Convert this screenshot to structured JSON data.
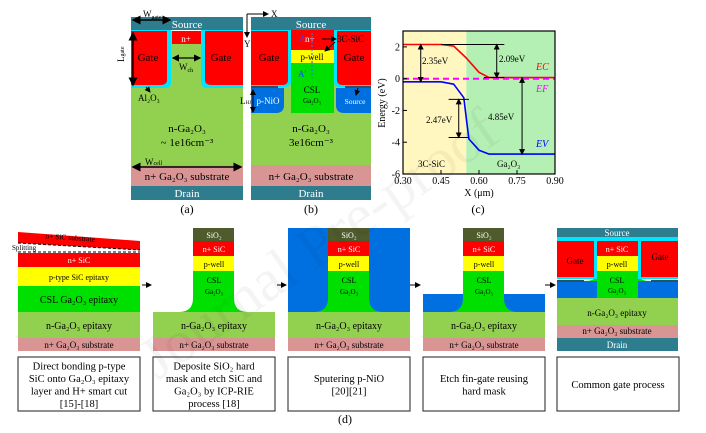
{
  "colors": {
    "teal": "#2e7d8f",
    "cyan": "#00e5ff",
    "gate": "#ff0000",
    "n_ga2o3": "#92d050",
    "substrate": "#d99594",
    "csl": "#00e000",
    "pwell": "#ffff00",
    "nio": "#0070e0",
    "sio2": "#4f5b2c",
    "sic_bg": "#fff6c0",
    "ga2o3_bg": "#b4f0b4",
    "ec": "#ff0000",
    "ev": "#0000ff",
    "ef": "#ff00ff"
  },
  "watermark": "Journal Pre-proof",
  "a": {
    "source": "Source",
    "gate_l": "Gate",
    "gate_r": "Gate",
    "nplus": "n+",
    "w_gate": "W",
    "w_gate_sub": "gate",
    "l_gate": "L",
    "l_gate_sub": "gate",
    "w_ch": "W",
    "w_ch_sub": "ch",
    "al2o3": "Al₂O₃",
    "drift": "n-Ga₂O₃",
    "doping": "~ 1e16cm⁻³",
    "w_cell": "W",
    "w_cell_sub": "cell",
    "substrate": "n+  Ga₂O₃ substrate",
    "drain": "Drain",
    "label": "(a)"
  },
  "b": {
    "axis_x": "X",
    "axis_y": "Y",
    "source": "Source",
    "gate_l": "Gate",
    "gate_r": "Gate",
    "nplus": "n+",
    "a_pt": "A",
    "a2_pt": "A'",
    "sic": "3C-SiC",
    "pwell": "p-well",
    "csl": "CSL",
    "csl2": "Ga₂O₃",
    "nio": "p-NiO",
    "src2": "Source",
    "l_hj": "L",
    "l_hj_sub": "HJ",
    "drift": "n-Ga₂O₃",
    "doping": "3e16cm⁻³",
    "substrate": "n+ Ga₂O₃ substrate",
    "drain": "Drain",
    "label": "(b)"
  },
  "chart_data": {
    "type": "line",
    "xlabel": "X (μm)",
    "ylabel": "Energy (eV)",
    "xlim": [
      0.3,
      0.9
    ],
    "ylim": [
      -6,
      3
    ],
    "xticks": [
      "0.30",
      "0.45",
      "0.60",
      "0.75",
      "0.90"
    ],
    "yticks": [
      "2",
      "0",
      "-2",
      "-4",
      "-6"
    ],
    "regions": [
      {
        "label": "3C-SiC",
        "x": [
          0.3,
          0.55
        ]
      },
      {
        "label": "Ga₂O₃",
        "x": [
          0.55,
          0.9
        ]
      }
    ],
    "series": [
      {
        "name": "EC",
        "x": [
          0.3,
          0.45,
          0.5,
          0.55,
          0.6,
          0.64,
          0.9
        ],
        "y": [
          2.15,
          2.15,
          2.05,
          1.3,
          0.4,
          0.07,
          0.07
        ]
      },
      {
        "name": "EF",
        "x": [
          0.3,
          0.9
        ],
        "y": [
          0,
          0
        ]
      },
      {
        "name": "EV",
        "x": [
          0.3,
          0.45,
          0.5,
          0.54,
          0.55,
          0.56,
          0.6,
          0.64,
          0.9
        ],
        "y": [
          -0.2,
          -0.2,
          -0.35,
          -1.2,
          -2.5,
          -3.8,
          -4.5,
          -4.75,
          -4.75
        ]
      }
    ],
    "annotations": [
      "2.35eV",
      "2.09eV",
      "2.47eV",
      "4.85eV"
    ],
    "label": "(c)"
  },
  "d": {
    "label": "(d)",
    "steps": [
      {
        "layers": [
          "n+ SiC substrate",
          "Splitting",
          "n+ SiC",
          "p-type SiC epitaxy",
          "CSL Ga₂O₃ epitaxy",
          "n-Ga₂O₃ epitaxy",
          "n+ Ga₂O₃ substrate"
        ],
        "caption": [
          "Direct bonding p-type",
          "SiC onto Ga₂O₃ epitaxy",
          "layer and H+ smart cut",
          "[15]-[18]"
        ]
      },
      {
        "layers": [
          "SiO₂",
          "n+ SiC",
          "p-well",
          "CSL",
          "Ga₂O₃",
          "n-Ga₂O₃ epitaxy",
          "n+ Ga₂O₃ substrate"
        ],
        "caption": [
          "Deposite SiO₂ hard",
          "mask and etch SiC and",
          "Ga₂O₃ by ICP-RIE",
          "process [18]"
        ]
      },
      {
        "layers": [
          "SiO₂",
          "n+ SiC",
          "p-well",
          "CSL",
          "Ga₂O₃",
          "n-Ga₂O₃ epitaxy",
          "n+ Ga₂O₃ substrate"
        ],
        "caption": [
          "Sputering  p-NiO",
          "[20][21]"
        ]
      },
      {
        "layers": [
          "SiO₂",
          "n+ SiC",
          "p-well",
          "CSL",
          "Ga₂O₃",
          "n-Ga₂O₃ epitaxy",
          "n+ Ga₂O₃ substrate"
        ],
        "caption": [
          "Etch fin-gate reusing",
          "hard mask"
        ]
      },
      {
        "layers": [
          "Source",
          "n+ SiC",
          "p-well",
          "CSL",
          "Ga₂O₃",
          "Gate",
          "Gate",
          "n-Ga₂O₃ epitaxy",
          "n+ Ga₂O₃ substrate",
          "Drain"
        ],
        "caption": [
          "Common gate process"
        ]
      }
    ]
  }
}
